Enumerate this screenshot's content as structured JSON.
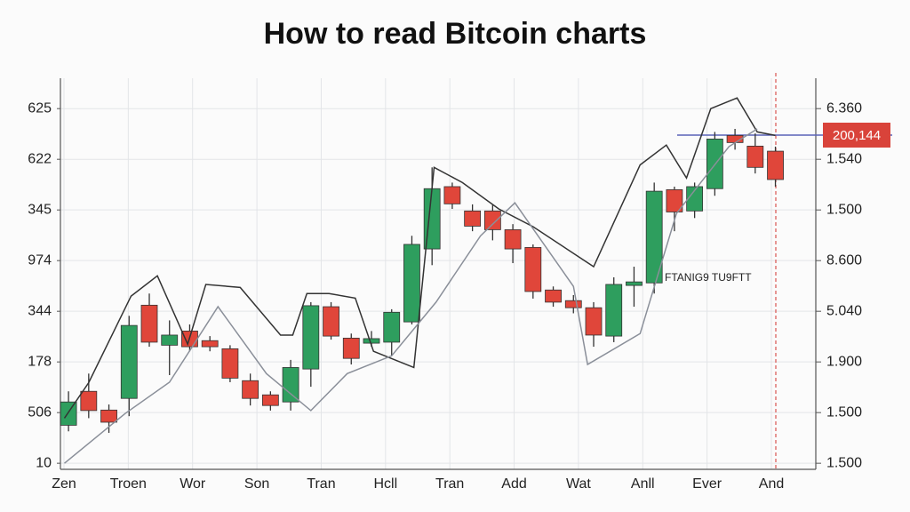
{
  "chart_data": {
    "type": "candlestick",
    "title": "How to read Bitcoin charts",
    "categories": [
      "Zen",
      "Troen",
      "Wor",
      "Son",
      "Tran",
      "Hcll",
      "Tran",
      "Add",
      "Wat",
      "Anll",
      "Ever",
      "And"
    ],
    "open": [
      0.75,
      1.42,
      1.05,
      1.28,
      3.12,
      2.33,
      2.61,
      2.42,
      2.26,
      1.63,
      1.35,
      1.21,
      1.86,
      3.09,
      2.47,
      2.37,
      2.39,
      2.79,
      4.23,
      5.46,
      4.98,
      4.98,
      4.61,
      4.26,
      3.42,
      3.21,
      3.07,
      2.51,
      3.51,
      3.56,
      5.4,
      4.98,
      5.42,
      6.47,
      6.26,
      6.16
    ],
    "high": [
      1.42,
      1.77,
      1.16,
      2.91,
      3.35,
      2.82,
      2.74,
      2.51,
      2.33,
      1.77,
      1.42,
      2.04,
      3.18,
      3.18,
      2.56,
      2.61,
      3.04,
      4.49,
      5.84,
      5.54,
      5.11,
      5.11,
      4.72,
      4.32,
      3.49,
      3.32,
      3.18,
      3.67,
      3.88,
      5.54,
      5.46,
      5.54,
      6.54,
      6.6,
      6.51,
      6.25
    ],
    "low": [
      0.63,
      0.89,
      0.6,
      0.93,
      2.3,
      1.74,
      2.21,
      2.21,
      1.6,
      1.14,
      1.04,
      1.04,
      1.51,
      2.44,
      1.95,
      2.3,
      2.12,
      2.74,
      3.91,
      5.02,
      4.58,
      4.4,
      3.95,
      3.25,
      3.09,
      2.96,
      2.3,
      2.39,
      3.09,
      3.35,
      4.58,
      4.84,
      5.28,
      6.19,
      5.72,
      5.46
    ],
    "close": [
      1.21,
      1.04,
      0.81,
      2.72,
      2.39,
      2.53,
      2.3,
      2.3,
      1.68,
      1.28,
      1.14,
      1.89,
      3.11,
      2.51,
      2.07,
      2.46,
      2.98,
      4.32,
      5.42,
      5.12,
      4.68,
      4.61,
      4.23,
      3.39,
      3.18,
      3.07,
      2.53,
      3.53,
      3.58,
      5.37,
      4.96,
      5.46,
      6.4,
      6.33,
      5.84,
      5.6
    ],
    "up_color": "#2e9e5e",
    "down_color": "#e0463a",
    "lines": [
      {
        "color": "#333333",
        "x": [
          -0.2,
          1.0,
          3.1,
          4.4,
          5.9,
          6.8,
          8.5,
          10.5,
          11.1,
          11.8,
          12.9,
          14.2,
          15.1,
          17.1,
          18.1,
          19.5,
          21.3,
          23.0,
          26.0,
          28.3,
          29.6,
          30.6,
          31.8,
          33.1,
          34.1,
          35.0
        ],
        "values": [
          0.89,
          1.59,
          3.3,
          3.7,
          2.35,
          3.53,
          3.47,
          2.53,
          2.53,
          3.35,
          3.35,
          3.26,
          2.21,
          1.89,
          5.84,
          5.54,
          5.02,
          4.67,
          3.88,
          5.89,
          6.28,
          5.63,
          7.0,
          7.21,
          6.54,
          6.47
        ]
      },
      {
        "color": "#8a8f99",
        "x": [
          -0.2,
          2.8,
          5.0,
          7.4,
          9.8,
          12.0,
          13.8,
          16.0,
          18.2,
          20.4,
          22.1,
          25.0,
          25.7,
          28.3,
          30.1,
          32.7,
          34.1
        ],
        "values": [
          0,
          0.98,
          1.6,
          3.09,
          1.77,
          1.04,
          1.77,
          2.12,
          3.18,
          4.49,
          5.14,
          3.49,
          1.95,
          2.56,
          4.93,
          6.25,
          6.6
        ]
      }
    ],
    "xlim": [
      -0.4,
      37
    ],
    "ylim": [
      -0.12,
      7.6
    ],
    "yticks": [
      {
        "value": 7,
        "label": "625"
      },
      {
        "value": 6,
        "label": "622"
      },
      {
        "value": 5,
        "label": "345"
      },
      {
        "value": 4,
        "label": "974"
      },
      {
        "value": 3,
        "label": "344"
      },
      {
        "value": 2,
        "label": "178"
      },
      {
        "value": 1,
        "label": "506"
      },
      {
        "value": 0,
        "label": "10"
      }
    ],
    "y2lim": [
      -0.12,
      7.6
    ],
    "y2ticks": [
      {
        "value": 7,
        "label": "6.360"
      },
      {
        "value": 6,
        "label": "1.540"
      },
      {
        "value": 5,
        "label": "1.500"
      },
      {
        "value": 4,
        "label": "8.600"
      },
      {
        "value": 3,
        "label": "5.040"
      },
      {
        "value": 2,
        "label": "1.900"
      },
      {
        "value": 1,
        "label": "1.500"
      },
      {
        "value": 0,
        "label": "1.500"
      }
    ],
    "annotation": "FTANIG9 TU9FTT",
    "price_label": "200,144",
    "grid": true
  }
}
